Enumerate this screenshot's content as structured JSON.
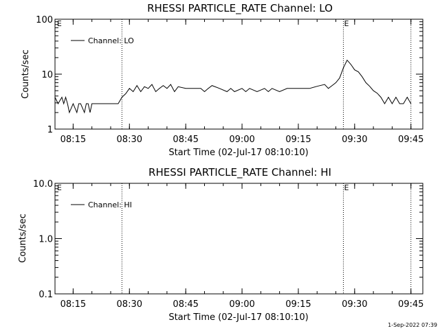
{
  "chart_data": [
    {
      "type": "line",
      "title": "RHESSI PARTICLE_RATE Channel: LO",
      "xlabel": "Start Time (02-Jul-17 08:10:10)",
      "ylabel": "Counts/sec",
      "yscale": "log",
      "ylim": [
        1,
        100
      ],
      "xlim": [
        "08:10:10",
        "09:48:10"
      ],
      "grid": false,
      "legend": {
        "placement": "top-left",
        "label": "Channel: LO"
      },
      "x_ticks": [
        "08:15",
        "08:30",
        "08:45",
        "09:00",
        "09:15",
        "09:30",
        "09:45"
      ],
      "y_ticks": [
        "1",
        "10",
        "100"
      ],
      "event_markers": [
        {
          "time": "08:10:30",
          "label": "E"
        },
        {
          "time": "09:27:00",
          "label": "E"
        }
      ],
      "vertical_lines": [
        "08:28:00",
        "09:27:00",
        "09:45:00"
      ],
      "series": [
        {
          "name": "Channel: LO",
          "x": [
            "08:10:10",
            "08:11:00",
            "08:12:00",
            "08:12:30",
            "08:13:00",
            "08:13:30",
            "08:14:00",
            "08:15:00",
            "08:16:00",
            "08:16:30",
            "08:17:00",
            "08:18:00",
            "08:18:30",
            "08:19:00",
            "08:19:30",
            "08:20:00",
            "08:21:00",
            "08:22:00",
            "08:24:00",
            "08:26:00",
            "08:27:00",
            "08:28:00",
            "08:29:00",
            "08:30:00",
            "08:31:00",
            "08:32:00",
            "08:33:00",
            "08:34:00",
            "08:35:00",
            "08:36:00",
            "08:37:00",
            "08:38:00",
            "08:39:00",
            "08:40:00",
            "08:41:00",
            "08:42:00",
            "08:43:00",
            "08:45:00",
            "08:47:00",
            "08:49:00",
            "08:50:00",
            "08:51:00",
            "08:52:00",
            "08:54:00",
            "08:56:00",
            "08:57:00",
            "08:58:00",
            "09:00:00",
            "09:01:00",
            "09:02:00",
            "09:04:00",
            "09:06:00",
            "09:07:00",
            "09:08:00",
            "09:10:00",
            "09:12:00",
            "09:14:00",
            "09:16:00",
            "09:18:00",
            "09:20:00",
            "09:22:00",
            "09:23:00",
            "09:24:00",
            "09:25:00",
            "09:26:00",
            "09:27:00",
            "09:28:00",
            "09:29:00",
            "09:30:00",
            "09:31:00",
            "09:32:00",
            "09:33:00",
            "09:34:00",
            "09:35:00",
            "09:36:00",
            "09:37:00",
            "09:38:00",
            "09:39:00",
            "09:40:00",
            "09:41:00",
            "09:42:00",
            "09:43:00",
            "09:44:00",
            "09:45:00"
          ],
          "y": [
            3.8,
            2.9,
            3.8,
            2.9,
            3.8,
            2.9,
            2.0,
            2.9,
            2.0,
            2.9,
            2.9,
            2.0,
            2.9,
            2.9,
            2.0,
            2.9,
            2.9,
            2.9,
            2.9,
            2.9,
            2.9,
            3.8,
            4.4,
            5.5,
            4.8,
            6.2,
            4.8,
            5.9,
            5.5,
            6.5,
            4.8,
            5.5,
            6.2,
            5.5,
            6.5,
            4.8,
            5.9,
            5.5,
            5.5,
            5.5,
            4.8,
            5.5,
            6.2,
            5.5,
            4.8,
            5.5,
            4.8,
            5.5,
            4.8,
            5.5,
            4.8,
            5.5,
            4.8,
            5.5,
            4.8,
            5.5,
            5.5,
            5.5,
            5.5,
            6.0,
            6.5,
            5.5,
            6.2,
            7.0,
            8.5,
            13,
            18,
            15,
            12,
            11,
            9,
            7,
            6,
            5,
            4.5,
            3.8,
            2.9,
            3.8,
            2.9,
            3.8,
            2.9,
            2.9,
            3.8,
            2.9
          ]
        }
      ]
    },
    {
      "type": "line",
      "title": "RHESSI PARTICLE_RATE Channel: HI",
      "xlabel": "Start Time (02-Jul-17 08:10:10)",
      "ylabel": "Counts/sec",
      "yscale": "log",
      "ylim": [
        0.1,
        10.0
      ],
      "xlim": [
        "08:10:10",
        "09:48:10"
      ],
      "grid": false,
      "legend": {
        "placement": "top-left",
        "label": "Channel: HI"
      },
      "x_ticks": [
        "08:15",
        "08:30",
        "08:45",
        "09:00",
        "09:15",
        "09:30",
        "09:45"
      ],
      "y_ticks": [
        "0.1",
        "1.0",
        "10.0"
      ],
      "event_markers": [
        {
          "time": "08:10:30",
          "label": "E"
        },
        {
          "time": "09:27:00",
          "label": "E"
        }
      ],
      "vertical_lines": [
        "08:28:00",
        "09:27:00",
        "09:45:00"
      ],
      "series": [
        {
          "name": "Channel: HI",
          "x": [],
          "y": []
        }
      ]
    }
  ],
  "footer": {
    "timestamp": "1-Sep-2022 07:39"
  }
}
